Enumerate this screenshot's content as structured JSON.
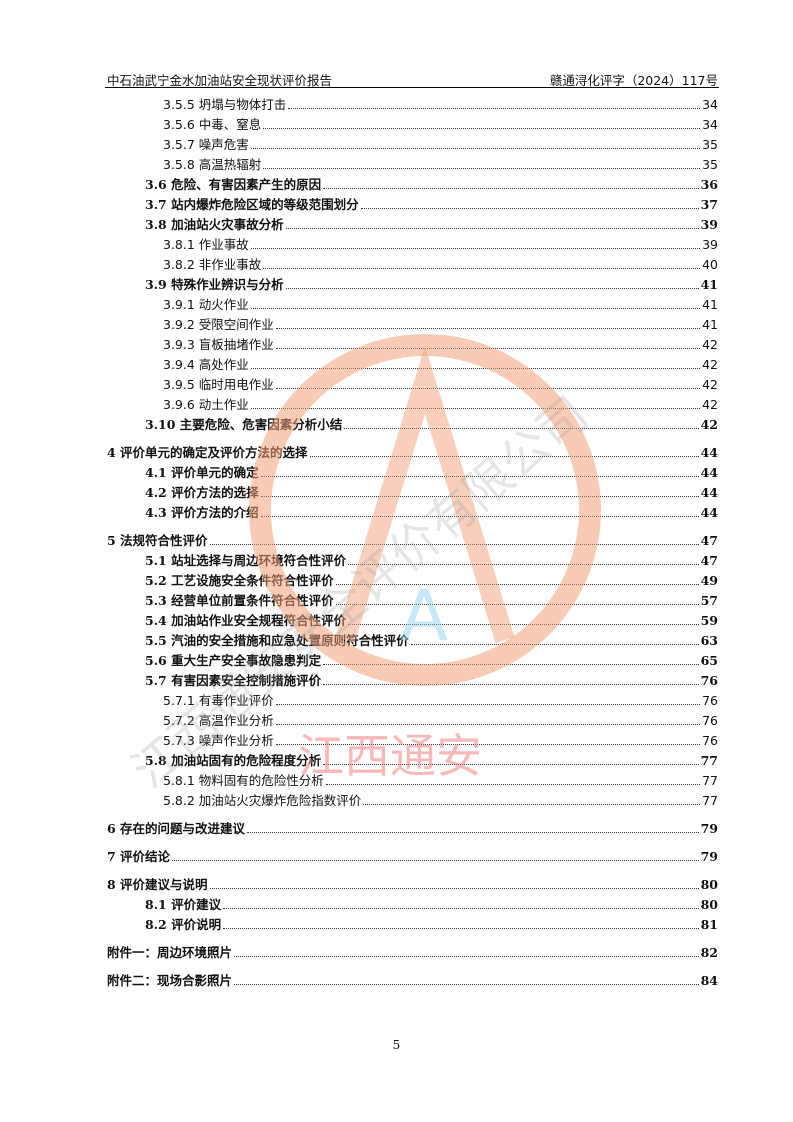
{
  "header": {
    "left": "中石油武宁金水加油站安全现状评价报告",
    "right": "赣通浔化评字（2024）117号"
  },
  "toc": [
    {
      "level": 3,
      "title": "3.5.5 坍塌与物体打击",
      "page": "34"
    },
    {
      "level": 3,
      "title": "3.5.6 中毒、窒息",
      "page": "34"
    },
    {
      "level": 3,
      "title": "3.5.7 噪声危害",
      "page": "35"
    },
    {
      "level": 3,
      "title": "3.5.8 高温热辐射",
      "page": "35"
    },
    {
      "level": 2,
      "title": "3.6 危险、有害因素产生的原因",
      "page": "36"
    },
    {
      "level": 2,
      "title": "3.7 站内爆炸危险区域的等级范围划分",
      "page": "37"
    },
    {
      "level": 2,
      "title": "3.8 加油站火灾事故分析",
      "page": "39"
    },
    {
      "level": 3,
      "title": "3.8.1 作业事故",
      "page": "39"
    },
    {
      "level": 3,
      "title": "3.8.2 非作业事故",
      "page": "40"
    },
    {
      "level": 2,
      "title": "3.9 特殊作业辨识与分析",
      "page": "41"
    },
    {
      "level": 3,
      "title": "3.9.1 动火作业",
      "page": "41"
    },
    {
      "level": 3,
      "title": "3.9.2 受限空间作业",
      "page": "41"
    },
    {
      "level": 3,
      "title": "3.9.3 盲板抽堵作业",
      "page": "42"
    },
    {
      "level": 3,
      "title": "3.9.4 高处作业",
      "page": "42"
    },
    {
      "level": 3,
      "title": "3.9.5 临时用电作业",
      "page": "42"
    },
    {
      "level": 3,
      "title": "3.9.6 动土作业",
      "page": "42"
    },
    {
      "level": 2,
      "title": "3.10 主要危险、危害因素分析小结",
      "page": "42"
    },
    {
      "level": 1,
      "title": "4 评价单元的确定及评价方法的选择",
      "page": "44"
    },
    {
      "level": 2,
      "title": "4.1 评价单元的确定",
      "page": "44"
    },
    {
      "level": 2,
      "title": "4.2 评价方法的选择",
      "page": "44"
    },
    {
      "level": 2,
      "title": "4.3 评价方法的介绍",
      "page": "44"
    },
    {
      "level": 1,
      "title": "5 法规符合性评价",
      "page": "47"
    },
    {
      "level": 2,
      "title": "5.1 站址选择与周边环境符合性评价",
      "page": "47"
    },
    {
      "level": 2,
      "title": "5.2 工艺设施安全条件符合性评价",
      "page": "49"
    },
    {
      "level": 2,
      "title": "5.3 经营单位前置条件符合性评价",
      "page": "57"
    },
    {
      "level": 2,
      "title": "5.4 加油站作业安全规程符合性评价",
      "page": "59"
    },
    {
      "level": 2,
      "title": "5.5 汽油的安全措施和应急处置原则符合性评价",
      "page": "63"
    },
    {
      "level": 2,
      "title": "5.6 重大生产安全事故隐患判定",
      "page": "65"
    },
    {
      "level": 2,
      "title": "5.7 有害因素安全控制措施评价",
      "page": "76"
    },
    {
      "level": 3,
      "title": "5.7.1 有毒作业评价",
      "page": "76"
    },
    {
      "level": 3,
      "title": "5.7.2 高温作业分析",
      "page": "76"
    },
    {
      "level": 3,
      "title": "5.7.3 噪声作业分析",
      "page": "76"
    },
    {
      "level": 2,
      "title": "5.8 加油站固有的危险程度分析",
      "page": "77"
    },
    {
      "level": 3,
      "title": "5.8.1 物料固有的危险性分析",
      "page": "77"
    },
    {
      "level": 3,
      "title": "5.8.2 加油站火灾爆炸危险指数评价",
      "page": "77"
    },
    {
      "level": 1,
      "title": "6 存在的问题与改进建议",
      "page": "79"
    },
    {
      "level": 1,
      "title": "7 评价结论",
      "page": "79"
    },
    {
      "level": 1,
      "title": "8 评价建议与说明",
      "page": "80"
    },
    {
      "level": 2,
      "title": "8.1 评价建议",
      "page": "80"
    },
    {
      "level": 2,
      "title": "8.2 评价说明",
      "page": "81"
    },
    {
      "level": 1,
      "title": "附件一：周边环境照片",
      "page": "82"
    },
    {
      "level": 1,
      "title": "附件二：现场合影照片",
      "page": "84"
    }
  ],
  "page_number": "5",
  "watermark": {
    "text": "江西通安",
    "ring_text": "江西通安安全评价有限公司",
    "logo": "A",
    "colors": {
      "ring": "#f2a07a",
      "logo_blue": "#8fd3f0",
      "text": "#f08080"
    }
  }
}
